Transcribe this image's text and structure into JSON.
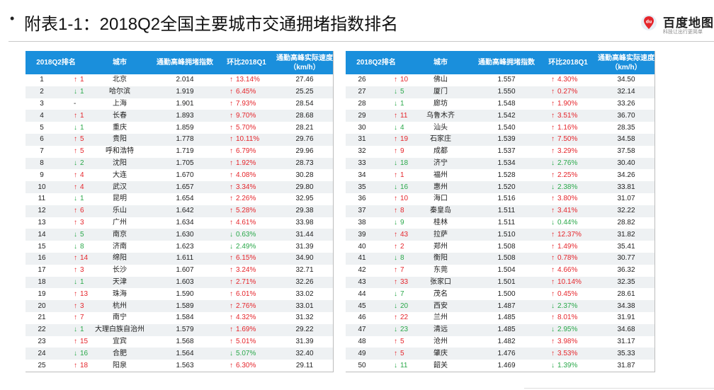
{
  "header": {
    "bullet": "•",
    "title": "附表1-1：2018Q2全国主要城市交通拥堵指数排名",
    "logo_text": "百度地图",
    "logo_sub": "科技让出行更简单",
    "logo_mark": "du"
  },
  "columns": [
    "2018Q2排名",
    "城市",
    "通勤高峰拥堵指数",
    "环比2018Q1",
    "通勤高峰实际速度",
    "（km/h）"
  ],
  "colors": {
    "header_bg": "#1a8fdc",
    "up": "#e5262c",
    "down": "#2aa84a"
  },
  "left_rows": [
    {
      "rank": "1",
      "dir": "up",
      "chg": "1",
      "city": "北京",
      "index": "2.014",
      "rdir": "up",
      "ratio": "13.14%",
      "speed": "27.46"
    },
    {
      "rank": "2",
      "dir": "down",
      "chg": "1",
      "city": "哈尔滨",
      "index": "1.919",
      "rdir": "up",
      "ratio": "6.45%",
      "speed": "25.25"
    },
    {
      "rank": "3",
      "dir": "none",
      "chg": "-",
      "city": "上海",
      "index": "1.901",
      "rdir": "up",
      "ratio": "7.93%",
      "speed": "28.54"
    },
    {
      "rank": "4",
      "dir": "up",
      "chg": "1",
      "city": "长春",
      "index": "1.893",
      "rdir": "up",
      "ratio": "9.70%",
      "speed": "28.68"
    },
    {
      "rank": "5",
      "dir": "down",
      "chg": "1",
      "city": "重庆",
      "index": "1.859",
      "rdir": "up",
      "ratio": "5.70%",
      "speed": "28.21"
    },
    {
      "rank": "6",
      "dir": "up",
      "chg": "5",
      "city": "贵阳",
      "index": "1.778",
      "rdir": "up",
      "ratio": "10.11%",
      "speed": "29.76"
    },
    {
      "rank": "7",
      "dir": "up",
      "chg": "5",
      "city": "呼和浩特",
      "index": "1.719",
      "rdir": "up",
      "ratio": "6.79%",
      "speed": "29.96"
    },
    {
      "rank": "8",
      "dir": "down",
      "chg": "2",
      "city": "沈阳",
      "index": "1.705",
      "rdir": "up",
      "ratio": "1.92%",
      "speed": "28.73"
    },
    {
      "rank": "9",
      "dir": "up",
      "chg": "4",
      "city": "大连",
      "index": "1.670",
      "rdir": "up",
      "ratio": "4.08%",
      "speed": "30.28"
    },
    {
      "rank": "10",
      "dir": "up",
      "chg": "4",
      "city": "武汉",
      "index": "1.657",
      "rdir": "up",
      "ratio": "3.34%",
      "speed": "29.80"
    },
    {
      "rank": "11",
      "dir": "down",
      "chg": "1",
      "city": "昆明",
      "index": "1.654",
      "rdir": "up",
      "ratio": "2.26%",
      "speed": "32.95"
    },
    {
      "rank": "12",
      "dir": "up",
      "chg": "6",
      "city": "乐山",
      "index": "1.642",
      "rdir": "up",
      "ratio": "5.28%",
      "speed": "29.38"
    },
    {
      "rank": "13",
      "dir": "up",
      "chg": "3",
      "city": "广州",
      "index": "1.634",
      "rdir": "up",
      "ratio": "4.61%",
      "speed": "33.98"
    },
    {
      "rank": "14",
      "dir": "down",
      "chg": "5",
      "city": "南京",
      "index": "1.630",
      "rdir": "down",
      "ratio": "0.63%",
      "speed": "31.44"
    },
    {
      "rank": "15",
      "dir": "down",
      "chg": "8",
      "city": "济南",
      "index": "1.623",
      "rdir": "down",
      "ratio": "2.49%",
      "speed": "31.39"
    },
    {
      "rank": "16",
      "dir": "up",
      "chg": "14",
      "city": "绵阳",
      "index": "1.611",
      "rdir": "up",
      "ratio": "6.15%",
      "speed": "34.90"
    },
    {
      "rank": "17",
      "dir": "up",
      "chg": "3",
      "city": "长沙",
      "index": "1.607",
      "rdir": "up",
      "ratio": "3.24%",
      "speed": "32.71"
    },
    {
      "rank": "18",
      "dir": "down",
      "chg": "1",
      "city": "天津",
      "index": "1.603",
      "rdir": "up",
      "ratio": "2.71%",
      "speed": "32.26"
    },
    {
      "rank": "19",
      "dir": "up",
      "chg": "13",
      "city": "珠海",
      "index": "1.590",
      "rdir": "up",
      "ratio": "6.01%",
      "speed": "33.02"
    },
    {
      "rank": "20",
      "dir": "up",
      "chg": "3",
      "city": "杭州",
      "index": "1.589",
      "rdir": "up",
      "ratio": "2.76%",
      "speed": "33.01"
    },
    {
      "rank": "21",
      "dir": "up",
      "chg": "7",
      "city": "南宁",
      "index": "1.584",
      "rdir": "up",
      "ratio": "4.32%",
      "speed": "31.32"
    },
    {
      "rank": "22",
      "dir": "down",
      "chg": "1",
      "city": "大理白族自治州",
      "index": "1.579",
      "rdir": "up",
      "ratio": "1.69%",
      "speed": "29.22"
    },
    {
      "rank": "23",
      "dir": "up",
      "chg": "15",
      "city": "宜宾",
      "index": "1.568",
      "rdir": "up",
      "ratio": "5.01%",
      "speed": "31.39"
    },
    {
      "rank": "24",
      "dir": "down",
      "chg": "16",
      "city": "合肥",
      "index": "1.564",
      "rdir": "down",
      "ratio": "5.07%",
      "speed": "32.40"
    },
    {
      "rank": "25",
      "dir": "up",
      "chg": "18",
      "city": "阳泉",
      "index": "1.563",
      "rdir": "up",
      "ratio": "6.30%",
      "speed": "29.11"
    }
  ],
  "right_rows": [
    {
      "rank": "26",
      "dir": "up",
      "chg": "10",
      "city": "佛山",
      "index": "1.557",
      "rdir": "up",
      "ratio": "4.30%",
      "speed": "34.50"
    },
    {
      "rank": "27",
      "dir": "down",
      "chg": "5",
      "city": "厦门",
      "index": "1.550",
      "rdir": "up",
      "ratio": "0.27%",
      "speed": "32.14"
    },
    {
      "rank": "28",
      "dir": "down",
      "chg": "1",
      "city": "廊坊",
      "index": "1.548",
      "rdir": "up",
      "ratio": "1.90%",
      "speed": "33.26"
    },
    {
      "rank": "29",
      "dir": "up",
      "chg": "11",
      "city": "乌鲁木齐",
      "index": "1.542",
      "rdir": "up",
      "ratio": "3.51%",
      "speed": "36.70"
    },
    {
      "rank": "30",
      "dir": "down",
      "chg": "4",
      "city": "汕头",
      "index": "1.540",
      "rdir": "up",
      "ratio": "1.16%",
      "speed": "28.35"
    },
    {
      "rank": "31",
      "dir": "up",
      "chg": "19",
      "city": "石家庄",
      "index": "1.539",
      "rdir": "up",
      "ratio": "7.50%",
      "speed": "34.58"
    },
    {
      "rank": "32",
      "dir": "up",
      "chg": "9",
      "city": "成都",
      "index": "1.537",
      "rdir": "up",
      "ratio": "3.29%",
      "speed": "37.58"
    },
    {
      "rank": "33",
      "dir": "down",
      "chg": "18",
      "city": "济宁",
      "index": "1.534",
      "rdir": "down",
      "ratio": "2.76%",
      "speed": "30.40"
    },
    {
      "rank": "34",
      "dir": "up",
      "chg": "1",
      "city": "福州",
      "index": "1.528",
      "rdir": "up",
      "ratio": "2.25%",
      "speed": "34.26"
    },
    {
      "rank": "35",
      "dir": "down",
      "chg": "16",
      "city": "惠州",
      "index": "1.520",
      "rdir": "down",
      "ratio": "2.38%",
      "speed": "33.81"
    },
    {
      "rank": "36",
      "dir": "up",
      "chg": "10",
      "city": "海口",
      "index": "1.516",
      "rdir": "up",
      "ratio": "3.80%",
      "speed": "31.07"
    },
    {
      "rank": "37",
      "dir": "up",
      "chg": "8",
      "city": "秦皇岛",
      "index": "1.511",
      "rdir": "up",
      "ratio": "3.41%",
      "speed": "32.22"
    },
    {
      "rank": "38",
      "dir": "down",
      "chg": "9",
      "city": "桂林",
      "index": "1.511",
      "rdir": "down",
      "ratio": "0.44%",
      "speed": "28.82"
    },
    {
      "rank": "39",
      "dir": "up",
      "chg": "43",
      "city": "拉萨",
      "index": "1.510",
      "rdir": "up",
      "ratio": "12.37%",
      "speed": "31.82"
    },
    {
      "rank": "40",
      "dir": "up",
      "chg": "2",
      "city": "郑州",
      "index": "1.508",
      "rdir": "up",
      "ratio": "1.49%",
      "speed": "35.41"
    },
    {
      "rank": "41",
      "dir": "down",
      "chg": "8",
      "city": "衡阳",
      "index": "1.508",
      "rdir": "up",
      "ratio": "0.78%",
      "speed": "30.77"
    },
    {
      "rank": "42",
      "dir": "up",
      "chg": "7",
      "city": "东莞",
      "index": "1.504",
      "rdir": "up",
      "ratio": "4.66%",
      "speed": "36.32"
    },
    {
      "rank": "43",
      "dir": "up",
      "chg": "33",
      "city": "张家口",
      "index": "1.501",
      "rdir": "up",
      "ratio": "10.14%",
      "speed": "32.35"
    },
    {
      "rank": "44",
      "dir": "down",
      "chg": "7",
      "city": "茂名",
      "index": "1.500",
      "rdir": "up",
      "ratio": "0.45%",
      "speed": "28.61"
    },
    {
      "rank": "45",
      "dir": "down",
      "chg": "20",
      "city": "西安",
      "index": "1.487",
      "rdir": "down",
      "ratio": "2.37%",
      "speed": "34.38"
    },
    {
      "rank": "46",
      "dir": "up",
      "chg": "22",
      "city": "兰州",
      "index": "1.485",
      "rdir": "up",
      "ratio": "8.01%",
      "speed": "31.91"
    },
    {
      "rank": "47",
      "dir": "down",
      "chg": "23",
      "city": "清远",
      "index": "1.485",
      "rdir": "down",
      "ratio": "2.95%",
      "speed": "34.68"
    },
    {
      "rank": "48",
      "dir": "up",
      "chg": "5",
      "city": "沧州",
      "index": "1.482",
      "rdir": "up",
      "ratio": "3.98%",
      "speed": "31.17"
    },
    {
      "rank": "49",
      "dir": "up",
      "chg": "5",
      "city": "肇庆",
      "index": "1.476",
      "rdir": "up",
      "ratio": "3.53%",
      "speed": "35.33"
    },
    {
      "rank": "50",
      "dir": "down",
      "chg": "11",
      "city": "韶关",
      "index": "1.469",
      "rdir": "down",
      "ratio": "1.39%",
      "speed": "31.87"
    }
  ]
}
